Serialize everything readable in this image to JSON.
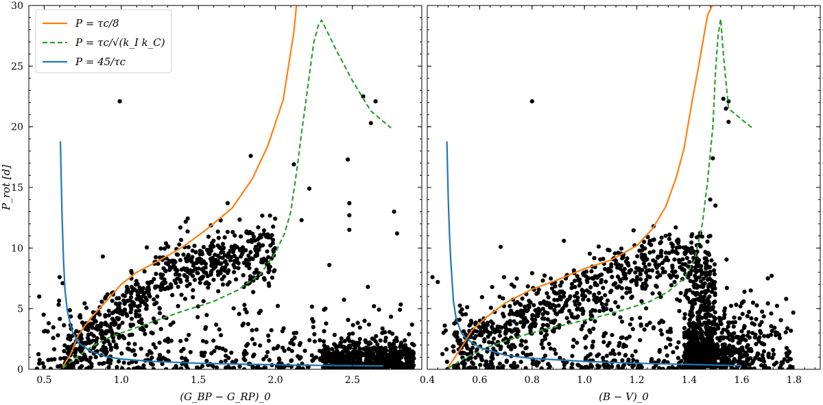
{
  "chart_data": [
    {
      "type": "scatter",
      "xlabel": "(G_BP − G_RP)_0",
      "ylabel": "P_rot [d]",
      "xlim": [
        0.4,
        2.95
      ],
      "ylim": [
        0,
        30
      ],
      "xticks": [
        "0.5",
        "1.0",
        "1.5",
        "2.0",
        "2.5"
      ],
      "yticks": [
        "0",
        "5",
        "10",
        "15",
        "20",
        "25",
        "30"
      ],
      "grid": false,
      "legend_placement": "top-left",
      "series": [
        {
          "name": "P = τc/8",
          "kind": "line",
          "color": "#ff7f0e",
          "dash": "solid",
          "x": [
            0.62,
            0.67,
            0.72,
            0.8,
            0.9,
            1.0,
            1.1,
            1.25,
            1.4,
            1.55,
            1.72,
            1.85,
            1.95,
            2.05,
            2.12,
            2.14
          ],
          "y": [
            0.2,
            1.2,
            2.8,
            4.2,
            5.6,
            7.0,
            8.0,
            9.0,
            10.1,
            11.5,
            13.3,
            15.7,
            18.4,
            22.2,
            27.8,
            30.5
          ]
        },
        {
          "name": "P = τc/√(k_I k_C)",
          "kind": "line",
          "color": "#2ca02c",
          "dash": "dashed",
          "x": [
            0.62,
            0.7,
            0.8,
            0.9,
            1.0,
            1.2,
            1.4,
            1.6,
            1.75,
            1.9,
            2.0,
            2.06,
            2.1,
            2.14,
            2.17,
            2.2,
            2.23,
            2.25,
            2.28,
            2.3,
            2.4,
            2.5,
            2.62,
            2.75
          ],
          "y": [
            0.1,
            0.9,
            1.8,
            2.5,
            3.0,
            3.9,
            4.8,
            5.6,
            6.5,
            7.8,
            9.6,
            11.2,
            13.0,
            16.5,
            19.5,
            22.3,
            25.2,
            27.0,
            28.4,
            28.8,
            26.2,
            23.8,
            21.3,
            19.9
          ]
        },
        {
          "name": "P = 45/τc",
          "kind": "line",
          "color": "#1f77b4",
          "dash": "solid",
          "x": [
            0.605,
            0.615,
            0.625,
            0.635,
            0.65,
            0.68,
            0.72,
            0.8,
            0.9,
            1.0,
            1.2,
            1.5,
            1.8,
            2.0,
            2.1,
            2.2,
            2.3,
            2.5,
            2.7
          ],
          "y": [
            18.8,
            13.0,
            9.0,
            6.5,
            4.8,
            3.2,
            2.2,
            1.5,
            1.05,
            0.85,
            0.65,
            0.5,
            0.42,
            0.38,
            0.35,
            0.34,
            0.32,
            0.3,
            0.28
          ]
        },
        {
          "name": "",
          "kind": "points",
          "color": "#000000",
          "x": [
            0.99,
            1.84,
            2.12,
            2.22,
            2.47,
            2.57,
            2.62,
            2.65,
            1.69,
            2.48,
            2.48,
            2.48,
            2.77,
            2.79,
            2.17,
            0.88,
            0.6,
            0.62,
            2.35,
            2.64,
            2.6
          ],
          "y": [
            22.1,
            17.6,
            16.9,
            14.9,
            17.3,
            22.5,
            20.3,
            22.1,
            13.7,
            13.7,
            12.7,
            11.5,
            13.0,
            11.2,
            12.3,
            9.3,
            7.6,
            7.1,
            8.6,
            5.2,
            6.8
          ]
        }
      ]
    },
    {
      "type": "scatter",
      "xlabel": "(B − V)_0",
      "ylabel": "",
      "xlim": [
        0.4,
        1.9
      ],
      "ylim": [
        0,
        30
      ],
      "xticks": [
        "0.4",
        "0.6",
        "0.8",
        "1.0",
        "1.2",
        "1.4",
        "1.6",
        "1.8"
      ],
      "yticks": [],
      "grid": false,
      "series": [
        {
          "name": "P = τc/8",
          "kind": "line",
          "color": "#ff7f0e",
          "dash": "solid",
          "x": [
            0.48,
            0.5,
            0.53,
            0.57,
            0.62,
            0.7,
            0.8,
            0.9,
            1.0,
            1.1,
            1.2,
            1.26,
            1.31,
            1.35,
            1.38,
            1.41,
            1.44,
            1.46,
            1.47,
            1.49,
            1.5
          ],
          "y": [
            0.2,
            0.8,
            1.8,
            3.2,
            4.2,
            5.5,
            6.6,
            7.4,
            8.3,
            9.0,
            10.2,
            11.6,
            13.4,
            15.8,
            18.2,
            22.0,
            25.5,
            28.0,
            29.2,
            30.1,
            30.5
          ]
        },
        {
          "name": "P = τc/√(k_I k_C)",
          "kind": "line",
          "color": "#2ca02c",
          "dash": "dashed",
          "x": [
            0.48,
            0.55,
            0.65,
            0.75,
            0.85,
            0.95,
            1.05,
            1.15,
            1.25,
            1.32,
            1.38,
            1.42,
            1.45,
            1.47,
            1.49,
            1.5,
            1.51,
            1.52,
            1.53,
            1.55,
            1.6,
            1.64
          ],
          "y": [
            0.1,
            1.0,
            2.0,
            2.7,
            3.3,
            3.8,
            4.3,
            4.9,
            5.6,
            6.4,
            7.5,
            9.0,
            12.0,
            15.5,
            20.0,
            24.5,
            27.5,
            28.9,
            26.0,
            21.5,
            20.6,
            19.9
          ]
        },
        {
          "name": "P = 45/τc",
          "kind": "line",
          "color": "#1f77b4",
          "dash": "solid",
          "x": [
            0.475,
            0.48,
            0.485,
            0.49,
            0.495,
            0.5,
            0.51,
            0.53,
            0.55,
            0.6,
            0.7,
            0.8,
            1.0,
            1.2,
            1.4,
            1.5,
            1.6
          ],
          "y": [
            18.8,
            14.0,
            11.0,
            8.8,
            7.2,
            5.6,
            4.2,
            3.0,
            2.5,
            1.8,
            1.15,
            0.9,
            0.65,
            0.5,
            0.4,
            0.35,
            0.3
          ]
        },
        {
          "name": "",
          "kind": "points",
          "color": "#000000",
          "x": [
            0.8,
            1.53,
            1.55,
            1.55,
            1.54,
            1.49,
            1.5,
            1.48,
            1.48,
            1.7,
            1.77,
            1.64,
            0.68,
            0.42,
            0.44
          ],
          "y": [
            22.1,
            22.3,
            22.1,
            20.4,
            21.5,
            17.4,
            13.5,
            14.0,
            11.0,
            7.5,
            5.8,
            3.8,
            10.1,
            7.6,
            7.2
          ]
        }
      ]
    }
  ]
}
